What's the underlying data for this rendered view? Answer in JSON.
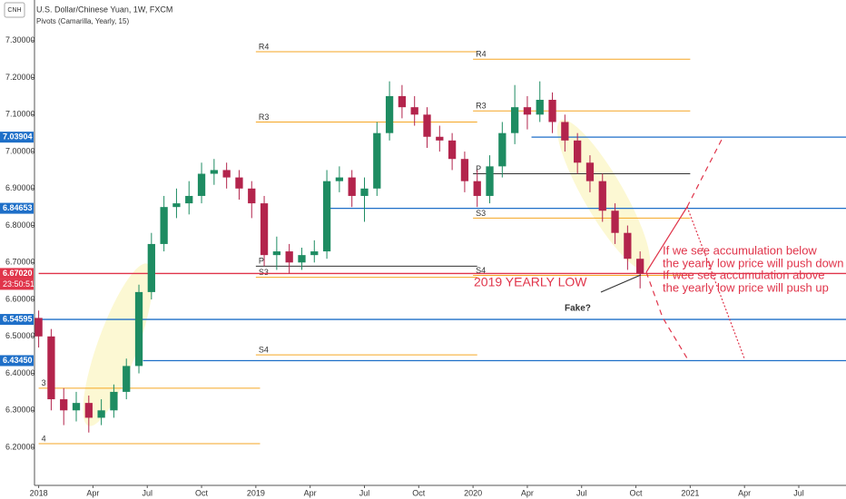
{
  "chart_data": {
    "type": "candlestick",
    "title": "U.S. Dollar/Chinese Yuan, 1W, FXCM",
    "subtitle": "Pivots (Camarilla, Yearly, 15)",
    "symbol": "CNH",
    "up_color": "#1e8c62",
    "down_color": "#b3244c",
    "x": [
      0,
      3,
      6,
      9,
      12,
      15,
      18,
      21,
      24,
      27,
      30,
      33,
      36,
      39,
      42,
      45,
      48,
      51,
      54,
      57,
      60,
      63,
      66,
      69,
      72,
      75,
      78,
      81,
      84,
      87,
      90,
      93,
      96,
      99,
      102,
      105,
      108,
      111,
      114,
      117,
      120,
      123,
      126,
      129,
      132,
      135,
      138,
      141,
      144
    ],
    "open": [
      6.55,
      6.5,
      6.33,
      6.3,
      6.32,
      6.28,
      6.3,
      6.35,
      6.42,
      6.62,
      6.75,
      6.85,
      6.86,
      6.88,
      6.94,
      6.95,
      6.93,
      6.9,
      6.86,
      6.72,
      6.73,
      6.7,
      6.72,
      6.73,
      6.92,
      6.93,
      6.88,
      6.9,
      7.05,
      7.15,
      7.12,
      7.1,
      7.04,
      7.03,
      6.98,
      6.92,
      6.88,
      6.96,
      7.05,
      7.12,
      7.1,
      7.14,
      7.08,
      7.03,
      6.97,
      6.92,
      6.84,
      6.78,
      6.71
    ],
    "high": [
      6.57,
      6.52,
      6.36,
      6.35,
      6.34,
      6.33,
      6.37,
      6.44,
      6.64,
      6.78,
      6.88,
      6.9,
      6.92,
      6.97,
      6.98,
      6.97,
      6.95,
      6.92,
      6.88,
      6.77,
      6.75,
      6.74,
      6.76,
      6.95,
      6.96,
      6.95,
      6.93,
      7.08,
      7.19,
      7.18,
      7.15,
      7.12,
      7.07,
      7.05,
      7.0,
      6.95,
      6.99,
      7.08,
      7.18,
      7.15,
      7.19,
      7.16,
      7.1,
      7.05,
      6.99,
      6.94,
      6.86,
      6.8,
      6.73
    ],
    "low": [
      6.47,
      6.3,
      6.26,
      6.27,
      6.24,
      6.26,
      6.28,
      6.33,
      6.4,
      6.6,
      6.73,
      6.82,
      6.83,
      6.86,
      6.91,
      6.9,
      6.87,
      6.82,
      6.69,
      6.68,
      6.67,
      6.68,
      6.7,
      6.71,
      6.89,
      6.85,
      6.81,
      6.88,
      7.03,
      7.09,
      7.07,
      7.01,
      7.0,
      6.95,
      6.89,
      6.85,
      6.86,
      6.93,
      7.02,
      7.06,
      7.08,
      7.05,
      7.0,
      6.94,
      6.89,
      6.81,
      6.75,
      6.68,
      6.63
    ],
    "close": [
      6.5,
      6.33,
      6.3,
      6.32,
      6.28,
      6.3,
      6.35,
      6.42,
      6.62,
      6.75,
      6.85,
      6.86,
      6.88,
      6.94,
      6.95,
      6.93,
      6.9,
      6.86,
      6.72,
      6.73,
      6.7,
      6.72,
      6.73,
      6.92,
      6.93,
      6.88,
      6.9,
      7.05,
      7.15,
      7.12,
      7.1,
      7.04,
      7.03,
      6.98,
      6.92,
      6.88,
      6.96,
      7.05,
      7.12,
      7.1,
      7.14,
      7.08,
      7.03,
      6.97,
      6.92,
      6.84,
      6.78,
      6.71,
      6.67
    ],
    "xlim": [
      -1,
      193.3
    ],
    "ylim": [
      6.097,
      7.41
    ],
    "yticks": [
      {
        "value": 7.3,
        "label": "7.30000"
      },
      {
        "value": 7.2,
        "label": "7.20000"
      },
      {
        "value": 7.1,
        "label": "7.10000"
      },
      {
        "value": 7.0,
        "label": "7.00000"
      },
      {
        "value": 6.9,
        "label": "6.90000"
      },
      {
        "value": 6.8,
        "label": "6.80000"
      },
      {
        "value": 6.7,
        "label": "6.70000"
      },
      {
        "value": 6.6,
        "label": "6.60000"
      },
      {
        "value": 6.5,
        "label": "6.50000"
      },
      {
        "value": 6.4,
        "label": "6.40000"
      },
      {
        "value": 6.3,
        "label": "6.30000"
      },
      {
        "value": 6.2,
        "label": "6.20000"
      }
    ],
    "xticks": [
      {
        "value": 0,
        "label": "2018"
      },
      {
        "value": 13,
        "label": "Apr"
      },
      {
        "value": 26,
        "label": "Jul"
      },
      {
        "value": 39,
        "label": "Oct"
      },
      {
        "value": 52,
        "label": "2019"
      },
      {
        "value": 65,
        "label": "Apr"
      },
      {
        "value": 78,
        "label": "Jul"
      },
      {
        "value": 91,
        "label": "Oct"
      },
      {
        "value": 104,
        "label": "2020"
      },
      {
        "value": 117,
        "label": "Apr"
      },
      {
        "value": 130,
        "label": "Jul"
      },
      {
        "value": 143,
        "label": "Oct"
      },
      {
        "value": 156,
        "label": "2021"
      },
      {
        "value": 169,
        "label": "Apr"
      },
      {
        "value": 182,
        "label": "Jul"
      }
    ],
    "levels": [
      {
        "value": 7.03904,
        "label": "7.03904",
        "color": "#1e6fc8",
        "from": 118
      },
      {
        "value": 6.84653,
        "label": "6.84653",
        "color": "#1e6fc8",
        "from": 69
      },
      {
        "value": 6.6702,
        "label": "6.67020",
        "color": "#e0344a",
        "from": 0
      },
      {
        "value": 6.54595,
        "label": "6.54595",
        "color": "#1e6fc8",
        "from": 0
      },
      {
        "value": 6.4345,
        "label": "6.43450",
        "color": "#1e6fc8",
        "from": 25
      }
    ],
    "countdown": "23:50:51",
    "pivots": [
      {
        "label": "3",
        "value": 6.36,
        "from": 0,
        "to": 53,
        "color": "#f5a623"
      },
      {
        "label": "4",
        "value": 6.21,
        "from": 0,
        "to": 53,
        "color": "#f5a623"
      },
      {
        "label": "R4",
        "value": 7.27,
        "from": 52,
        "to": 105,
        "color": "#f5a623"
      },
      {
        "label": "R3",
        "value": 7.08,
        "from": 52,
        "to": 105,
        "color": "#f5a623"
      },
      {
        "label": "P",
        "value": 6.69,
        "from": 52,
        "to": 105,
        "color": "#333333"
      },
      {
        "label": "S3",
        "value": 6.66,
        "from": 52,
        "to": 105,
        "color": "#f5a623"
      },
      {
        "label": "S4",
        "value": 6.45,
        "from": 52,
        "to": 105,
        "color": "#f5a623"
      },
      {
        "label": "R4",
        "value": 7.25,
        "from": 104,
        "to": 156,
        "color": "#f5a623"
      },
      {
        "label": "R3",
        "value": 7.11,
        "from": 104,
        "to": 156,
        "color": "#f5a623"
      },
      {
        "label": "P",
        "value": 6.94,
        "from": 104,
        "to": 156,
        "color": "#333333"
      },
      {
        "label": "S3",
        "value": 6.82,
        "from": 104,
        "to": 156,
        "color": "#f5a623"
      },
      {
        "label": "S4",
        "value": 6.665,
        "from": 104,
        "to": 156,
        "color": "#f5a623"
      }
    ],
    "annotations": {
      "low": "2019 YEARLY LOW",
      "fake": "Fake?",
      "text": [
        "If we see accumulation below",
        "the yearly low price will push down",
        "If wee see accumulation above",
        "the yearly low price will push up"
      ]
    }
  }
}
